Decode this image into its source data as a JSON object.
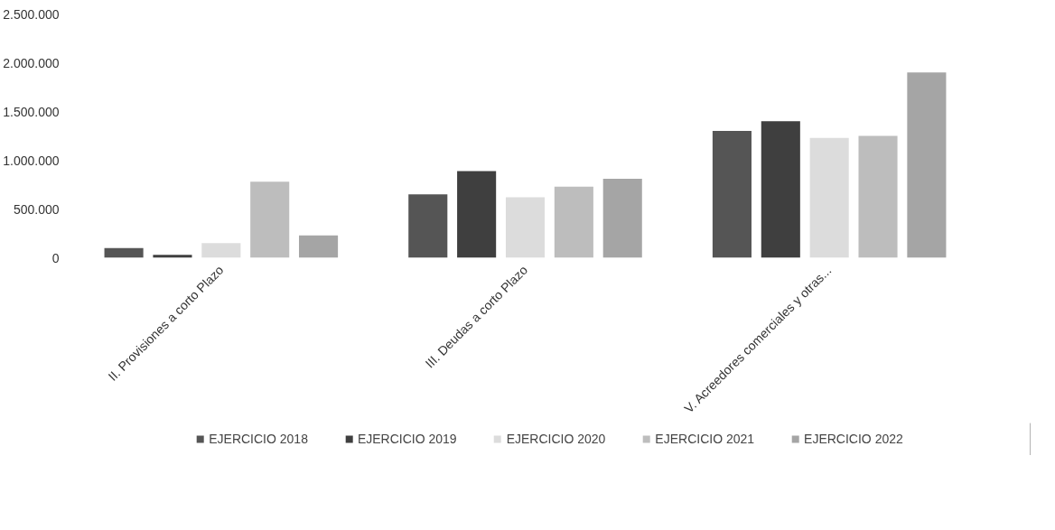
{
  "chart_data": {
    "type": "bar",
    "categories": [
      "II. Provisiones a corto Plazo",
      "III. Deudas a corto Plazo",
      "V. Acreedores comerciales y otras..."
    ],
    "series": [
      {
        "name": "EJERCICIO 2018",
        "color": "#555555",
        "values": [
          100000,
          650000,
          1300000
        ]
      },
      {
        "name": "EJERCICIO 2019",
        "color": "#3f3f3f",
        "values": [
          30000,
          890000,
          1400000
        ]
      },
      {
        "name": "EJERCICIO 2020",
        "color": "#dcdcdc",
        "values": [
          150000,
          620000,
          1230000
        ]
      },
      {
        "name": "EJERCICIO 2021",
        "color": "#bdbdbd",
        "values": [
          780000,
          730000,
          1250000
        ]
      },
      {
        "name": "EJERCICIO 2022",
        "color": "#a5a5a5",
        "values": [
          230000,
          810000,
          1900000
        ]
      }
    ],
    "ylim": [
      0,
      2500000
    ],
    "yticks": [
      0,
      {
        "value": 500000,
        "label": "500.000"
      },
      {
        "value": 1000000,
        "label": "1.000.000"
      },
      {
        "value": 1500000,
        "label": "1.500.000"
      },
      {
        "value": 2000000,
        "label": "2.000.000"
      },
      {
        "value": 2500000,
        "label": "2.500.000"
      }
    ],
    "grid": false,
    "legend": "bottom"
  }
}
